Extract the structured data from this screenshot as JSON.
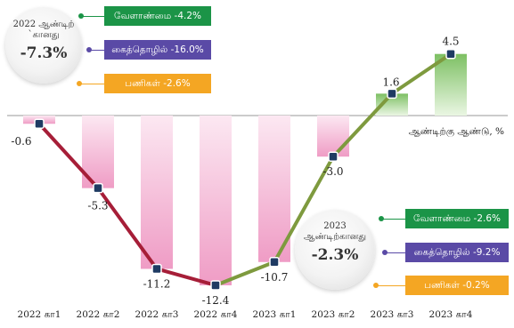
{
  "colors": {
    "bar_neg": "#f2a7cc",
    "bar_pos": "#8bc971",
    "line_decline": "#a61e38",
    "line_recovery": "#7e9a3e",
    "agriculture": "#1b9447",
    "industry": "#5a4aa6",
    "services": "#f4a623"
  },
  "chart_data": {
    "type": "bar",
    "categories": [
      "2022 கா1",
      "2022 கா2",
      "2022 கா3",
      "2022 கா4",
      "2023 கா1",
      "2023 கா2",
      "2023 கா3",
      "2023 கா4"
    ],
    "values": [
      -0.6,
      -5.3,
      -11.2,
      -12.4,
      -10.7,
      -3.0,
      1.6,
      4.5
    ],
    "value_labels": [
      "-0.6",
      "-5.3",
      "-11.2",
      "-12.4",
      "-10.7",
      "-3.0",
      "1.6",
      "4.5"
    ],
    "series_label": "ஆண்டிற்கு ஆண்டு, %",
    "ylim": [
      -13,
      5
    ]
  },
  "summary_2022": {
    "label_line1": "2022 ஆண்டிற்",
    "label_line2": "`கானது",
    "value": "-7.3%",
    "tags": [
      {
        "text": "வேளாண்மை -4.2%",
        "color": "#1b9447"
      },
      {
        "text": "கைத்தொழில் -16.0%",
        "color": "#5a4aa6"
      },
      {
        "text": "பணிகள் -2.6%",
        "color": "#f4a623"
      }
    ]
  },
  "summary_2023": {
    "label_line1": "2023",
    "label_line2": "ஆண்டிற்கானது",
    "value": "-2.3%",
    "tags": [
      {
        "text": "வேளாண்மை -2.6%",
        "color": "#1b9447"
      },
      {
        "text": "கைத்தொழில் -9.2%",
        "color": "#5a4aa6"
      },
      {
        "text": "பணிகள் -0.2%",
        "color": "#f4a623"
      }
    ]
  }
}
